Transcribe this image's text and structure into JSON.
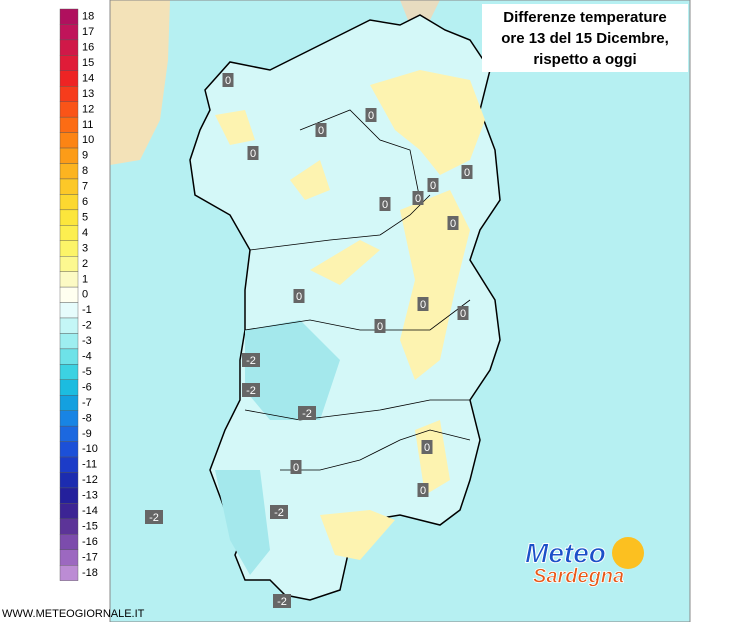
{
  "title": {
    "lines": [
      "Differenze temperature",
      "ore 13 del 15 Dicembre,",
      "rispetto a oggi"
    ]
  },
  "legend": {
    "values": [
      18,
      17,
      16,
      15,
      14,
      13,
      12,
      11,
      10,
      9,
      8,
      7,
      6,
      5,
      4,
      3,
      2,
      1,
      0,
      -1,
      -2,
      -3,
      -4,
      -5,
      -6,
      -7,
      -8,
      -9,
      -10,
      -11,
      -12,
      -13,
      -14,
      -15,
      -16,
      -17,
      -18
    ],
    "colors": [
      "#b0105e",
      "#c0145a",
      "#d01848",
      "#e01c38",
      "#ee2424",
      "#f63c1c",
      "#fa5418",
      "#fc6c14",
      "#fc8414",
      "#fc9c18",
      "#fcb420",
      "#fcc828",
      "#fcd830",
      "#fce63c",
      "#fcee50",
      "#fcf468",
      "#fcf890",
      "#fcfac4",
      "#fffff0",
      "#e6fcfc",
      "#c4f6f6",
      "#9eeef0",
      "#6ee2e8",
      "#3cd2e2",
      "#1cbce0",
      "#14a0e0",
      "#1884e4",
      "#1c68e0",
      "#1c50d8",
      "#1c3cc8",
      "#1c2cb0",
      "#24209c",
      "#3c2494",
      "#5c3498",
      "#7c4cac",
      "#9c68c0",
      "#bc8cd4"
    ]
  },
  "map_labels": [
    0,
    0,
    0,
    0,
    0,
    0,
    0,
    0,
    0,
    0,
    0,
    0,
    0,
    0,
    0,
    0,
    -2,
    -2,
    -2,
    -2,
    -2,
    -2
  ],
  "logo": {
    "line1": "Meteo",
    "line2": "Sardegna"
  },
  "footer": "WWW.METEOGIORNALE.IT"
}
